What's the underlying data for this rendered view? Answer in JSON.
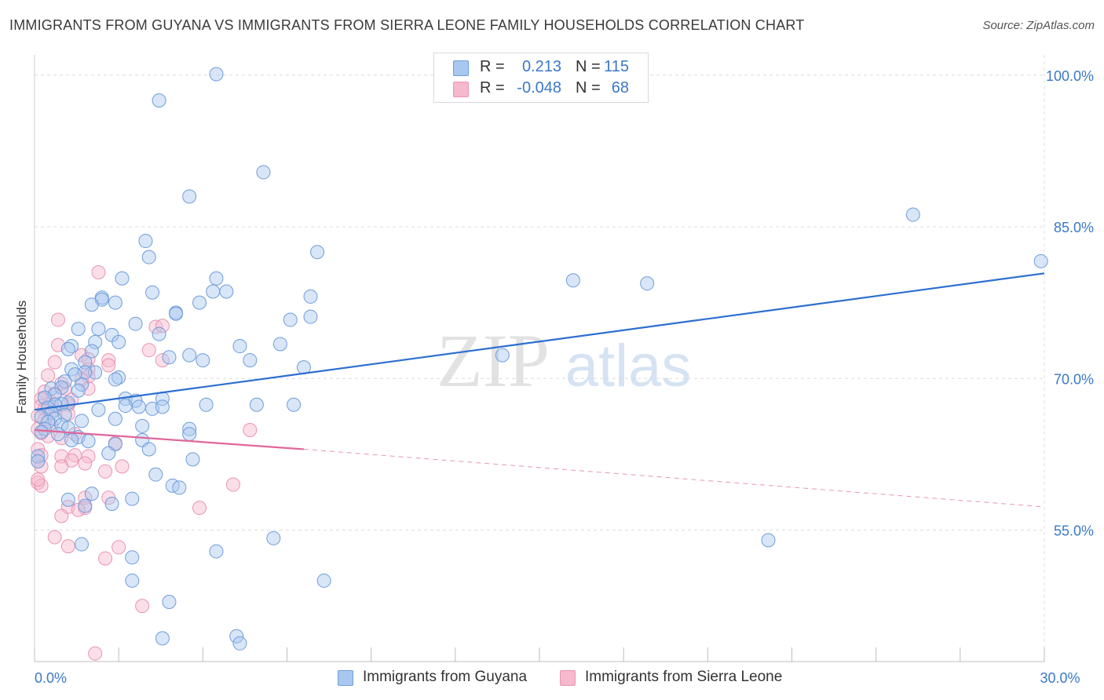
{
  "header": {
    "title": "IMMIGRANTS FROM GUYANA VS IMMIGRANTS FROM SIERRA LEONE FAMILY HOUSEHOLDS CORRELATION CHART",
    "source": "Source: ZipAtlas.com"
  },
  "legend": {
    "rows": [
      {
        "r_label": "R =",
        "r_value": "0.213",
        "n_label": "N =",
        "n_value": "115",
        "color": "#a9c8f0"
      },
      {
        "r_label": "R =",
        "r_value": "-0.048",
        "n_label": "N =",
        "n_value": "68",
        "color": "#f6b8cd"
      }
    ]
  },
  "bottom_legend": [
    "Immigrants from Guyana",
    "Immigrants from Sierra Leone"
  ],
  "watermark": {
    "zip": "ZIP",
    "atlas": "atlas"
  },
  "colors": {
    "blue_fill": "#a9c8f0",
    "blue_stroke": "#6f9ddb",
    "blue_line": "#2b6fd0",
    "pink_fill": "#f6b8cd",
    "pink_stroke": "#e994b2",
    "pink_line": "#e0679a",
    "axis_text": "#3a78c9",
    "grid": "#dcdcdc"
  },
  "chart_data": {
    "type": "scatter",
    "title": "IMMIGRANTS FROM GUYANA VS IMMIGRANTS FROM SIERRA LEONE FAMILY HOUSEHOLDS CORRELATION CHART",
    "xlabel": "",
    "ylabel": "Family Households",
    "xlim": [
      0,
      30
    ],
    "ylim": [
      42,
      102
    ],
    "x_tick_labels": [
      {
        "value": 0,
        "label": "0.0%"
      },
      {
        "value": 30,
        "label": "30.0%"
      }
    ],
    "y_tick_labels": [
      {
        "value": 55,
        "label": "55.0%"
      },
      {
        "value": 70,
        "label": "70.0%"
      },
      {
        "value": 85,
        "label": "85.0%"
      },
      {
        "value": 100,
        "label": "100.0%"
      }
    ],
    "grid": true,
    "legend_position": "top-center",
    "series": [
      {
        "name": "Immigrants from Guyana",
        "r": 0.213,
        "n": 115,
        "trend": [
          [
            0,
            66.9
          ],
          [
            30,
            80.4
          ]
        ],
        "points": [
          [
            5.4,
            100.1
          ],
          [
            3.7,
            97.5
          ],
          [
            6.8,
            90.4
          ],
          [
            4.6,
            88.0
          ],
          [
            26.1,
            86.2
          ],
          [
            29.9,
            81.6
          ],
          [
            3.3,
            83.6
          ],
          [
            3.4,
            82.0
          ],
          [
            8.4,
            82.5
          ],
          [
            2.6,
            79.9
          ],
          [
            5.4,
            79.9
          ],
          [
            16.0,
            79.7
          ],
          [
            18.2,
            79.4
          ],
          [
            3.5,
            78.5
          ],
          [
            5.7,
            78.6
          ],
          [
            5.3,
            78.6
          ],
          [
            2.0,
            78.0
          ],
          [
            2.0,
            77.8
          ],
          [
            8.2,
            78.1
          ],
          [
            1.7,
            77.3
          ],
          [
            2.4,
            77.5
          ],
          [
            4.2,
            76.5
          ],
          [
            4.2,
            76.4
          ],
          [
            4.9,
            77.5
          ],
          [
            7.6,
            75.8
          ],
          [
            8.2,
            76.1
          ],
          [
            3.0,
            75.4
          ],
          [
            3.7,
            74.4
          ],
          [
            1.3,
            74.9
          ],
          [
            1.9,
            74.9
          ],
          [
            2.3,
            74.3
          ],
          [
            1.8,
            73.6
          ],
          [
            6.1,
            73.2
          ],
          [
            7.3,
            73.4
          ],
          [
            1.1,
            73.2
          ],
          [
            2.5,
            73.6
          ],
          [
            1.0,
            72.9
          ],
          [
            1.7,
            72.7
          ],
          [
            4.6,
            72.3
          ],
          [
            4.0,
            72.1
          ],
          [
            5.0,
            71.8
          ],
          [
            6.4,
            71.8
          ],
          [
            1.5,
            71.6
          ],
          [
            8.0,
            71.1
          ],
          [
            13.9,
            72.3
          ],
          [
            1.1,
            70.9
          ],
          [
            1.8,
            70.6
          ],
          [
            1.5,
            70.6
          ],
          [
            1.2,
            70.4
          ],
          [
            2.5,
            70.1
          ],
          [
            2.4,
            69.9
          ],
          [
            0.9,
            69.7
          ],
          [
            1.4,
            69.4
          ],
          [
            1.3,
            68.8
          ],
          [
            0.5,
            69.0
          ],
          [
            0.8,
            69.1
          ],
          [
            0.6,
            68.4
          ],
          [
            0.3,
            68.1
          ],
          [
            3.8,
            68.0
          ],
          [
            2.7,
            68.0
          ],
          [
            3.0,
            67.8
          ],
          [
            1.0,
            67.6
          ],
          [
            0.8,
            67.5
          ],
          [
            0.6,
            67.4
          ],
          [
            0.4,
            67.1
          ],
          [
            2.7,
            67.3
          ],
          [
            3.1,
            67.2
          ],
          [
            1.9,
            66.9
          ],
          [
            3.5,
            67.0
          ],
          [
            3.8,
            67.2
          ],
          [
            5.1,
            67.4
          ],
          [
            6.6,
            67.4
          ],
          [
            7.7,
            67.4
          ],
          [
            0.5,
            66.6
          ],
          [
            0.9,
            66.4
          ],
          [
            0.2,
            66.2
          ],
          [
            0.6,
            66.0
          ],
          [
            0.4,
            65.7
          ],
          [
            1.4,
            65.8
          ],
          [
            2.4,
            66.0
          ],
          [
            0.8,
            65.4
          ],
          [
            0.3,
            65.0
          ],
          [
            1.0,
            65.1
          ],
          [
            3.2,
            65.3
          ],
          [
            4.6,
            65.0
          ],
          [
            0.7,
            64.5
          ],
          [
            1.3,
            64.2
          ],
          [
            4.6,
            64.5
          ],
          [
            0.2,
            64.7
          ],
          [
            1.1,
            63.9
          ],
          [
            1.6,
            63.8
          ],
          [
            3.2,
            63.9
          ],
          [
            2.4,
            63.5
          ],
          [
            3.4,
            63.0
          ],
          [
            0.1,
            62.3
          ],
          [
            0.1,
            61.8
          ],
          [
            2.2,
            62.6
          ],
          [
            4.7,
            62.0
          ],
          [
            3.6,
            60.5
          ],
          [
            4.1,
            59.4
          ],
          [
            4.3,
            59.2
          ],
          [
            1.7,
            58.6
          ],
          [
            1.0,
            58.0
          ],
          [
            2.3,
            57.6
          ],
          [
            2.9,
            58.1
          ],
          [
            1.5,
            57.4
          ],
          [
            7.1,
            54.2
          ],
          [
            21.8,
            54.0
          ],
          [
            1.4,
            53.6
          ],
          [
            5.4,
            52.9
          ],
          [
            2.9,
            52.3
          ],
          [
            8.6,
            50.0
          ],
          [
            2.9,
            50.0
          ],
          [
            4.0,
            47.9
          ],
          [
            3.8,
            44.3
          ],
          [
            6.0,
            44.5
          ],
          [
            6.1,
            43.8
          ]
        ]
      },
      {
        "name": "Immigrants from Sierra Leone",
        "r": -0.048,
        "n": 68,
        "trend": [
          [
            0,
            64.9
          ],
          [
            8.0,
            63.0
          ]
        ],
        "trend_extension": [
          [
            8.0,
            63.0
          ],
          [
            30,
            57.3
          ]
        ],
        "points": [
          [
            1.9,
            80.5
          ],
          [
            0.7,
            75.8
          ],
          [
            3.6,
            75.1
          ],
          [
            3.8,
            75.2
          ],
          [
            0.7,
            73.3
          ],
          [
            1.4,
            72.3
          ],
          [
            3.4,
            72.8
          ],
          [
            1.6,
            71.9
          ],
          [
            2.2,
            71.8
          ],
          [
            0.6,
            71.6
          ],
          [
            3.8,
            71.8
          ],
          [
            2.2,
            71.3
          ],
          [
            1.6,
            70.9
          ],
          [
            0.4,
            70.3
          ],
          [
            1.6,
            70.2
          ],
          [
            1.4,
            69.9
          ],
          [
            0.8,
            69.5
          ],
          [
            0.9,
            69.0
          ],
          [
            1.6,
            69.0
          ],
          [
            0.3,
            68.7
          ],
          [
            0.6,
            68.5
          ],
          [
            0.2,
            68.0
          ],
          [
            1.1,
            67.9
          ],
          [
            0.5,
            67.6
          ],
          [
            1.0,
            67.4
          ],
          [
            0.2,
            67.3
          ],
          [
            0.3,
            67.0
          ],
          [
            0.6,
            66.9
          ],
          [
            1.0,
            66.5
          ],
          [
            0.1,
            66.3
          ],
          [
            0.3,
            65.9
          ],
          [
            0.5,
            65.4
          ],
          [
            0.1,
            65.0
          ],
          [
            0.2,
            64.6
          ],
          [
            0.4,
            64.3
          ],
          [
            1.2,
            64.5
          ],
          [
            0.8,
            64.1
          ],
          [
            2.4,
            63.6
          ],
          [
            6.4,
            64.9
          ],
          [
            0.1,
            63.0
          ],
          [
            0.2,
            62.4
          ],
          [
            0.8,
            62.3
          ],
          [
            1.2,
            62.4
          ],
          [
            1.6,
            62.3
          ],
          [
            1.1,
            61.9
          ],
          [
            1.5,
            61.6
          ],
          [
            0.1,
            61.8
          ],
          [
            0.2,
            61.3
          ],
          [
            0.8,
            61.3
          ],
          [
            2.6,
            61.3
          ],
          [
            2.1,
            60.8
          ],
          [
            0.1,
            59.7
          ],
          [
            0.2,
            59.4
          ],
          [
            5.9,
            59.5
          ],
          [
            1.5,
            58.2
          ],
          [
            2.2,
            58.2
          ],
          [
            1.0,
            57.3
          ],
          [
            1.5,
            57.2
          ],
          [
            1.3,
            57.0
          ],
          [
            4.9,
            57.2
          ],
          [
            0.8,
            56.4
          ],
          [
            0.6,
            54.3
          ],
          [
            2.5,
            53.3
          ],
          [
            1.0,
            53.4
          ],
          [
            2.1,
            52.2
          ],
          [
            3.2,
            47.5
          ],
          [
            1.8,
            42.8
          ],
          [
            0.1,
            60.0
          ]
        ]
      }
    ]
  }
}
